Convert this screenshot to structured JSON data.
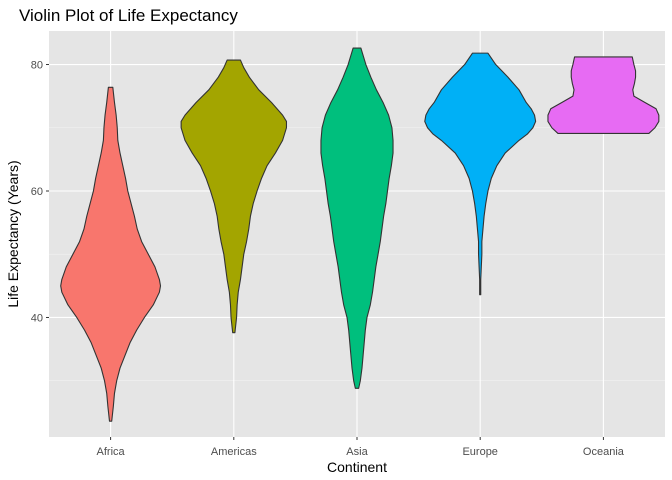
{
  "chart_data": {
    "type": "violin",
    "title": "Violin Plot of Life Expectancy",
    "xlabel": "Continent",
    "ylabel": "Life Expectancy (Years)",
    "categories": [
      "Africa",
      "Americas",
      "Asia",
      "Europe",
      "Oceania"
    ],
    "ylim": [
      21.1,
      85.3
    ],
    "yticks": [
      40,
      60,
      80
    ],
    "grid": true,
    "background": "#E5E5E5",
    "legend": "none",
    "colors": [
      "#F8766D",
      "#A3A500",
      "#00BF7D",
      "#00B0F6",
      "#E76BF3"
    ],
    "violins": [
      {
        "category": "Africa",
        "min": 23.6,
        "max": 76.4,
        "profile": [
          [
            23.6,
            0.02
          ],
          [
            26,
            0.05
          ],
          [
            28,
            0.07
          ],
          [
            30,
            0.11
          ],
          [
            32,
            0.17
          ],
          [
            34,
            0.26
          ],
          [
            36,
            0.35
          ],
          [
            38,
            0.47
          ],
          [
            40,
            0.61
          ],
          [
            42,
            0.77
          ],
          [
            44,
            0.88
          ],
          [
            45,
            0.9
          ],
          [
            46,
            0.88
          ],
          [
            48,
            0.8
          ],
          [
            50,
            0.68
          ],
          [
            52,
            0.56
          ],
          [
            54,
            0.48
          ],
          [
            56,
            0.43
          ],
          [
            58,
            0.37
          ],
          [
            60,
            0.31
          ],
          [
            62,
            0.27
          ],
          [
            64,
            0.22
          ],
          [
            66,
            0.17
          ],
          [
            68,
            0.13
          ],
          [
            70,
            0.12
          ],
          [
            72,
            0.1
          ],
          [
            74,
            0.07
          ],
          [
            76.4,
            0.04
          ]
        ]
      },
      {
        "category": "Americas",
        "min": 37.6,
        "max": 80.7,
        "profile": [
          [
            37.6,
            0.02
          ],
          [
            40,
            0.05
          ],
          [
            42,
            0.06
          ],
          [
            44,
            0.08
          ],
          [
            46,
            0.12
          ],
          [
            48,
            0.15
          ],
          [
            50,
            0.18
          ],
          [
            52,
            0.23
          ],
          [
            54,
            0.27
          ],
          [
            56,
            0.3
          ],
          [
            58,
            0.35
          ],
          [
            60,
            0.42
          ],
          [
            62,
            0.5
          ],
          [
            64,
            0.6
          ],
          [
            66,
            0.75
          ],
          [
            68,
            0.88
          ],
          [
            70,
            0.95
          ],
          [
            71,
            0.95
          ],
          [
            72,
            0.88
          ],
          [
            74,
            0.68
          ],
          [
            76,
            0.45
          ],
          [
            78,
            0.28
          ],
          [
            79.5,
            0.18
          ],
          [
            80.7,
            0.12
          ]
        ]
      },
      {
        "category": "Asia",
        "min": 28.8,
        "max": 82.6,
        "profile": [
          [
            28.8,
            0.03
          ],
          [
            30,
            0.06
          ],
          [
            32,
            0.09
          ],
          [
            34,
            0.11
          ],
          [
            36,
            0.13
          ],
          [
            38,
            0.15
          ],
          [
            40,
            0.18
          ],
          [
            42,
            0.24
          ],
          [
            44,
            0.28
          ],
          [
            46,
            0.31
          ],
          [
            48,
            0.34
          ],
          [
            50,
            0.38
          ],
          [
            52,
            0.42
          ],
          [
            54,
            0.45
          ],
          [
            56,
            0.48
          ],
          [
            58,
            0.52
          ],
          [
            60,
            0.55
          ],
          [
            62,
            0.58
          ],
          [
            64,
            0.62
          ],
          [
            66,
            0.65
          ],
          [
            68,
            0.65
          ],
          [
            70,
            0.63
          ],
          [
            72,
            0.57
          ],
          [
            74,
            0.47
          ],
          [
            76,
            0.35
          ],
          [
            78,
            0.25
          ],
          [
            80,
            0.16
          ],
          [
            82.6,
            0.07
          ]
        ]
      },
      {
        "category": "Europe",
        "min": 43.6,
        "max": 81.8,
        "profile": [
          [
            43.6,
            0.01
          ],
          [
            46,
            0.01
          ],
          [
            48,
            0.02
          ],
          [
            50,
            0.03
          ],
          [
            52,
            0.03
          ],
          [
            54,
            0.05
          ],
          [
            56,
            0.07
          ],
          [
            58,
            0.1
          ],
          [
            60,
            0.14
          ],
          [
            62,
            0.2
          ],
          [
            64,
            0.3
          ],
          [
            66,
            0.45
          ],
          [
            68,
            0.7
          ],
          [
            69,
            0.85
          ],
          [
            70,
            0.95
          ],
          [
            71,
            1.0
          ],
          [
            72,
            0.98
          ],
          [
            73,
            0.92
          ],
          [
            74,
            0.83
          ],
          [
            76,
            0.7
          ],
          [
            78,
            0.5
          ],
          [
            80,
            0.28
          ],
          [
            81.8,
            0.14
          ]
        ]
      },
      {
        "category": "Oceania",
        "min": 69.1,
        "max": 81.2,
        "profile": [
          [
            69.1,
            0.82
          ],
          [
            70,
            0.93
          ],
          [
            71,
            1.0
          ],
          [
            72,
            1.0
          ],
          [
            73,
            0.95
          ],
          [
            74,
            0.75
          ],
          [
            75,
            0.55
          ],
          [
            76,
            0.53
          ],
          [
            77,
            0.56
          ],
          [
            78,
            0.58
          ],
          [
            79,
            0.58
          ],
          [
            80,
            0.55
          ],
          [
            81.2,
            0.52
          ]
        ]
      }
    ]
  }
}
